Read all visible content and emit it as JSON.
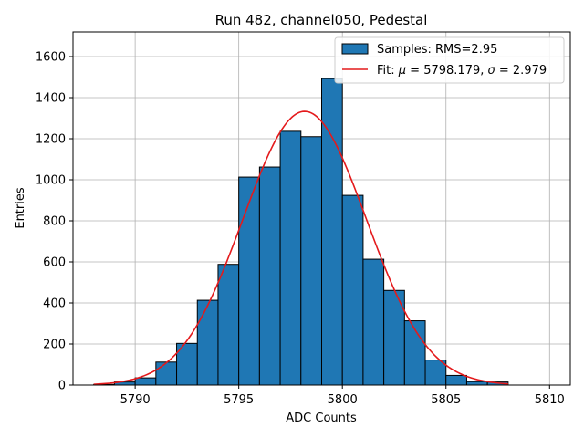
{
  "chart_data": {
    "type": "bar",
    "title": "Run 482, channel050, Pedestal",
    "xlabel": "ADC Counts",
    "ylabel": "Entries",
    "xlim": [
      5787,
      5811
    ],
    "ylim": [
      0,
      1720
    ],
    "xticks": [
      5790,
      5795,
      5800,
      5805,
      5810
    ],
    "yticks": [
      0,
      200,
      400,
      600,
      800,
      1000,
      1200,
      1400,
      1600
    ],
    "grid": true,
    "legend_position": "top-right",
    "bar_color": "#1f77b4",
    "fit_color": "#e41a1c",
    "bins": [
      {
        "x0": 5788,
        "x1": 5789,
        "count": 3
      },
      {
        "x0": 5789,
        "x1": 5790,
        "count": 15
      },
      {
        "x0": 5790,
        "x1": 5791,
        "count": 35
      },
      {
        "x0": 5791,
        "x1": 5792,
        "count": 112
      },
      {
        "x0": 5792,
        "x1": 5793,
        "count": 203
      },
      {
        "x0": 5793,
        "x1": 5794,
        "count": 413
      },
      {
        "x0": 5794,
        "x1": 5795,
        "count": 588
      },
      {
        "x0": 5795,
        "x1": 5796,
        "count": 1013
      },
      {
        "x0": 5796,
        "x1": 5797,
        "count": 1062
      },
      {
        "x0": 5797,
        "x1": 5798,
        "count": 1236
      },
      {
        "x0": 5798,
        "x1": 5799,
        "count": 1210
      },
      {
        "x0": 5799,
        "x1": 5800,
        "count": 1493
      },
      {
        "x0": 5800,
        "x1": 5801,
        "count": 924
      },
      {
        "x0": 5801,
        "x1": 5802,
        "count": 613
      },
      {
        "x0": 5802,
        "x1": 5803,
        "count": 461
      },
      {
        "x0": 5803,
        "x1": 5804,
        "count": 313
      },
      {
        "x0": 5804,
        "x1": 5805,
        "count": 122
      },
      {
        "x0": 5805,
        "x1": 5806,
        "count": 47
      },
      {
        "x0": 5806,
        "x1": 5807,
        "count": 17
      },
      {
        "x0": 5807,
        "x1": 5808,
        "count": 15
      }
    ],
    "fit": {
      "mu": 5798.179,
      "sigma": 2.979,
      "amplitude": 1333,
      "x_range": [
        5788,
        5808
      ]
    },
    "legend": {
      "samples_label": "Samples: RMS=2.95",
      "fit_prefix": "Fit: ",
      "mu_symbol": "μ",
      "mu_text": " = 5798.179, ",
      "sigma_symbol": "σ",
      "sigma_text": " = 2.979"
    }
  }
}
